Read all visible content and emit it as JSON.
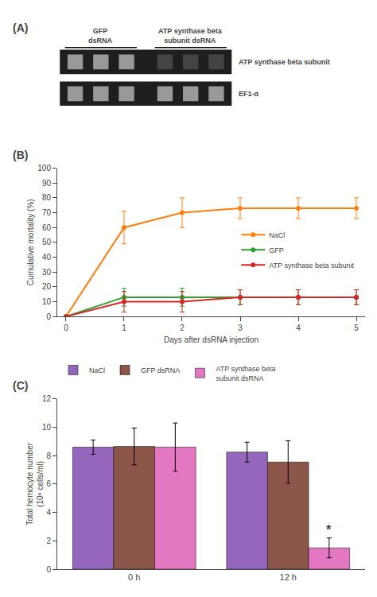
{
  "chart_data": [
    {
      "type": "gel",
      "title": "(A)",
      "annotations": [
        "GFP\ndsRNA",
        "ATP synthase beta\nsubunit dsRNA"
      ],
      "color": "#1e1e1e",
      "series": [
        {
          "name": "ATP synthase beta subunit",
          "colors": [
            "#999999",
            "#999999",
            "#999999",
            "#444444",
            "#444444",
            "#444444"
          ]
        },
        {
          "name": "EF1-α",
          "colors": [
            "#999999",
            "#999999",
            "#999999",
            "#999999",
            "#999999",
            "#999999"
          ]
        }
      ]
    },
    {
      "type": "line",
      "title": "(B)",
      "xlabel": "Days after dsRNA injection",
      "ylabel": "Cumulative mortality (%)",
      "x": [
        0,
        1,
        2,
        3,
        4,
        5
      ],
      "series": [
        {
          "name": "NaCl",
          "values": [
            0,
            60,
            70,
            73,
            73,
            73
          ],
          "yerr": [
            0,
            11,
            10,
            7,
            7,
            7
          ]
        },
        {
          "name": "GFP",
          "values": [
            0,
            13,
            13,
            13,
            13,
            13
          ],
          "yerr": [
            0,
            6,
            6,
            5,
            5,
            5
          ]
        },
        {
          "name": "ATP synthase beta subunit",
          "values": [
            0,
            10,
            10,
            13,
            13,
            13
          ],
          "yerr": [
            0,
            7,
            7,
            5,
            5,
            5
          ]
        }
      ],
      "xlim": [
        -0.15,
        5.15
      ],
      "xticks": [
        0,
        1,
        2,
        3,
        4,
        5
      ],
      "ylim": [
        0,
        100
      ],
      "yticks": [
        0,
        10,
        20,
        30,
        40,
        50,
        60,
        70,
        80,
        90,
        100
      ],
      "grid": false,
      "legend": "right",
      "marker": "circle"
    },
    {
      "type": "bar",
      "title": "(C)",
      "ylabel": "Total hemocyte number\n(10⁶ cells/ml)",
      "categories": [
        "0 h",
        "12 h"
      ],
      "series": [
        {
          "name": "NaCl",
          "values": [
            8.6,
            8.25
          ],
          "yerr": [
            0.5,
            0.7
          ]
        },
        {
          "name": "GFP dsRNA",
          "values": [
            8.65,
            7.55
          ],
          "yerr": [
            1.3,
            1.5
          ]
        },
        {
          "name": "ATP synthase beta\nsubunit dsRNA",
          "values": [
            8.6,
            1.5
          ],
          "yerr": [
            1.7,
            0.7
          ]
        }
      ],
      "ylim": [
        0,
        12
      ],
      "yticks": [
        0,
        2,
        4,
        6,
        8,
        10,
        12
      ],
      "grid": false,
      "legend": "top",
      "annotations": [
        {
          "text": "*",
          "category": "12 h",
          "series": "ATP synthase beta\nsubunit dsRNA"
        }
      ]
    }
  ]
}
